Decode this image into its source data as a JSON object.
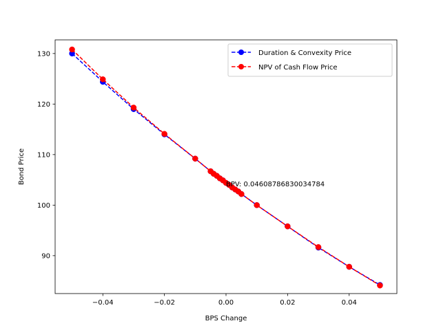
{
  "chart_data": {
    "type": "line",
    "title": "",
    "xlabel": "BPS Change",
    "ylabel": "Bond Price",
    "xlim": [
      -0.0555,
      0.0555
    ],
    "ylim": [
      82.5,
      132.7
    ],
    "xticks": [
      -0.04,
      -0.02,
      0.0,
      0.02,
      0.04
    ],
    "xtick_labels": [
      "−0.04",
      "−0.02",
      "0.00",
      "0.02",
      "0.04"
    ],
    "yticks": [
      90,
      100,
      110,
      120,
      130
    ],
    "ytick_labels": [
      "90",
      "100",
      "110",
      "120",
      "130"
    ],
    "grid": false,
    "legend_position": "upper right",
    "x": [
      -0.05,
      -0.04,
      -0.03,
      -0.02,
      -0.01,
      -0.005,
      -0.004,
      -0.003,
      -0.002,
      -0.001,
      0.0,
      0.001,
      0.002,
      0.003,
      0.004,
      0.005,
      0.01,
      0.02,
      0.03,
      0.04,
      0.05
    ],
    "series": [
      {
        "name": "Duration & Convexity Price",
        "color": "#0000ff",
        "marker": "circle",
        "linestyle": "dashed",
        "values": [
          130.0,
          124.4,
          119.0,
          114.0,
          109.2,
          106.7,
          106.2,
          105.8,
          105.3,
          104.9,
          104.4,
          104.0,
          103.5,
          103.1,
          102.7,
          102.2,
          100.0,
          95.8,
          91.6,
          87.8,
          84.2
        ]
      },
      {
        "name": "NPV of Cash Flow Price",
        "color": "#ff0000",
        "marker": "circle",
        "linestyle": "dashed",
        "values": [
          130.8,
          124.9,
          119.3,
          114.1,
          109.2,
          106.7,
          106.2,
          105.8,
          105.3,
          104.9,
          104.4,
          104.0,
          103.5,
          103.1,
          102.7,
          102.2,
          100.0,
          95.8,
          91.7,
          87.8,
          84.1
        ]
      }
    ],
    "annotations": [
      {
        "text": "BPV: 0.04608786830034784",
        "x": 0.0,
        "y": 104.2
      }
    ]
  }
}
